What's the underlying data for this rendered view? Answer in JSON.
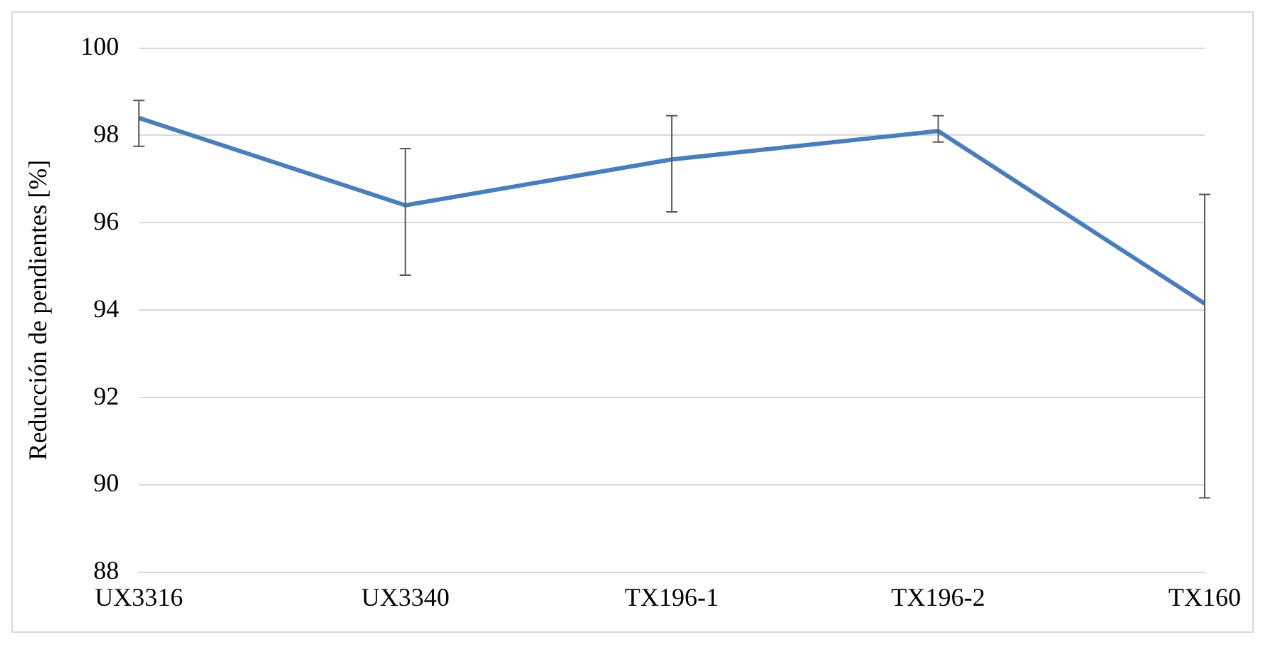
{
  "chart_data": {
    "type": "line",
    "ylabel": "Reducción de pendientes [%]",
    "categories": [
      "UX3316",
      "UX3340",
      "TX196-1",
      "TX196-2",
      "TX160"
    ],
    "series": [
      {
        "color": "#4a7ebb",
        "values": [
          98.4,
          96.4,
          97.45,
          98.1,
          94.15
        ],
        "errors": [
          [
            97.75,
            98.8
          ],
          [
            94.8,
            97.7
          ],
          [
            96.25,
            98.45
          ],
          [
            97.85,
            98.45
          ],
          [
            89.7,
            96.65
          ]
        ]
      }
    ],
    "ylim": [
      88,
      100
    ],
    "yticks": [
      88,
      90,
      92,
      94,
      96,
      98,
      100
    ],
    "grid": "y",
    "legend": false,
    "marker": "none",
    "line_style": "solid"
  }
}
